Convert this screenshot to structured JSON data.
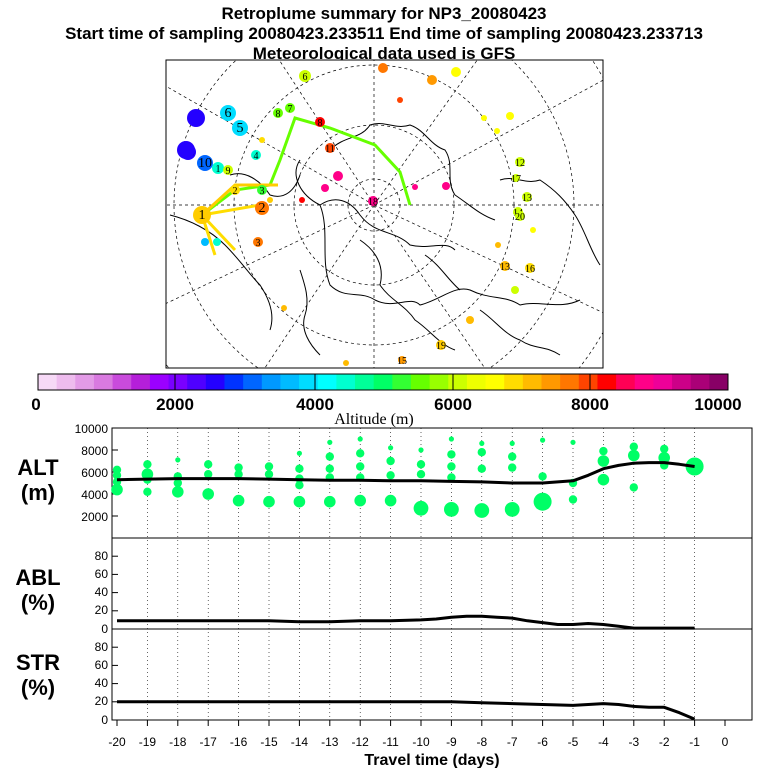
{
  "header": {
    "title": "Retroplume summary for NP3_20080423",
    "sampling": "Start time of sampling 20080423.233511     End time of sampling 20080423.233713",
    "met": "Meteorological data used is GFS"
  },
  "colorbar": {
    "ticks": [
      "0",
      "2000",
      "4000",
      "6000",
      "8000",
      "10000"
    ],
    "label": "Altitude (m)",
    "colors": [
      "#f6d9f6",
      "#eebcee",
      "#e39be7",
      "#d97ae0",
      "#c94bdc",
      "#b51fd9",
      "#9b00ff",
      "#7a00ff",
      "#4f00ff",
      "#2400ff",
      "#0033ff",
      "#0066ff",
      "#0099ff",
      "#00bbff",
      "#00ddff",
      "#00ffff",
      "#00ffd0",
      "#00ff99",
      "#00ff66",
      "#33ff33",
      "#66ff00",
      "#99ff00",
      "#ccff00",
      "#eeff00",
      "#ffff00",
      "#ffdd00",
      "#ffbb00",
      "#ff9900",
      "#ff7700",
      "#ff4400",
      "#ff0000",
      "#ff0055",
      "#ff0088",
      "#ee0099",
      "#cc0088",
      "#aa0077",
      "#880066"
    ]
  },
  "map": {
    "labels": [
      "1",
      "1",
      "2",
      "2",
      "3",
      "3",
      "4",
      "5",
      "6",
      "6",
      "7",
      "8",
      "8",
      "9",
      "10",
      "10",
      "11",
      "12",
      "13",
      "13",
      "14",
      "15",
      "16",
      "17",
      "18",
      "19",
      "20"
    ]
  },
  "chart_data": [
    {
      "type": "line",
      "panel": "ALT",
      "ylabel": "ALT (m)",
      "ylabel_lines": [
        "ALT",
        "(m)"
      ],
      "ylim": [
        0,
        10000
      ],
      "yticks": [
        "10000",
        "8000",
        "6000",
        "4000",
        "2000"
      ],
      "xlim": [
        -20,
        0
      ],
      "series": [
        {
          "name": "mean altitude",
          "x": [
            -20,
            -19,
            -18,
            -17,
            -16,
            -15,
            -14,
            -13,
            -12,
            -11,
            -10,
            -9,
            -8,
            -7,
            -6,
            -5,
            -4.5,
            -4,
            -3.5,
            -3,
            -2.5,
            -2,
            -1.5,
            -1
          ],
          "y": [
            5300,
            5350,
            5400,
            5400,
            5400,
            5350,
            5300,
            5250,
            5250,
            5200,
            5200,
            5150,
            5100,
            5000,
            5000,
            5200,
            5700,
            6300,
            6600,
            6800,
            6850,
            6850,
            6700,
            6500
          ]
        }
      ],
      "scatter": {
        "name": "altitude clusters",
        "x": [
          -20,
          -20,
          -20,
          -20,
          -19,
          -19,
          -19,
          -19,
          -18,
          -18,
          -18,
          -18,
          -17,
          -17,
          -17,
          -16,
          -16,
          -16,
          -15,
          -15,
          -15,
          -14,
          -14,
          -14,
          -14,
          -14,
          -13,
          -13,
          -13,
          -13,
          -13,
          -12,
          -12,
          -12,
          -12,
          -12,
          -11,
          -11,
          -11,
          -11,
          -10,
          -10,
          -10,
          -10,
          -9,
          -9,
          -9,
          -9,
          -9,
          -8,
          -8,
          -8,
          -8,
          -7,
          -7,
          -7,
          -7,
          -6,
          -6,
          -6,
          -5,
          -5,
          -5,
          -4,
          -4,
          -4,
          -3,
          -3,
          -3,
          -2,
          -2,
          -2,
          -1
        ],
        "y": [
          6200,
          5700,
          5100,
          4400,
          6700,
          5800,
          5300,
          4200,
          7100,
          5600,
          5000,
          4200,
          6700,
          5800,
          4000,
          6400,
          5800,
          3400,
          6500,
          5800,
          3300,
          7700,
          6300,
          5400,
          4800,
          3300,
          8700,
          7400,
          6300,
          5500,
          3300,
          9000,
          7700,
          6500,
          5500,
          3400,
          8200,
          7000,
          5700,
          3400,
          8000,
          6700,
          5800,
          2700,
          9000,
          7600,
          6500,
          5500,
          2600,
          8600,
          7800,
          6300,
          2500,
          8600,
          7400,
          6400,
          2600,
          8900,
          5600,
          3300,
          8700,
          5000,
          3500,
          7900,
          7000,
          5300,
          8300,
          7500,
          4600,
          8100,
          7300,
          6600,
          6500
        ],
        "size": [
          2,
          2,
          2,
          3,
          2,
          3,
          2,
          2,
          1,
          2,
          2,
          3,
          2,
          2,
          3,
          2,
          2,
          3,
          2,
          2,
          3,
          1,
          2,
          2,
          2,
          3,
          1,
          2,
          2,
          2,
          3,
          1,
          2,
          2,
          2,
          3,
          1,
          2,
          2,
          3,
          1,
          2,
          2,
          4,
          1,
          2,
          2,
          2,
          4,
          1,
          2,
          2,
          4,
          1,
          2,
          2,
          4,
          1,
          2,
          5,
          1,
          2,
          2,
          2,
          3,
          3,
          2,
          3,
          2,
          2,
          3,
          2,
          5
        ]
      }
    },
    {
      "type": "line",
      "panel": "ABL",
      "ylabel": "ABL (%)",
      "ylabel_lines": [
        "ABL",
        "(%)"
      ],
      "ylim": [
        0,
        100
      ],
      "yticks": [
        "80",
        "60",
        "40",
        "20",
        "0"
      ],
      "xlim": [
        -20,
        0
      ],
      "series": [
        {
          "name": "fraction in boundary layer",
          "x": [
            -20,
            -19,
            -18,
            -17,
            -16,
            -15,
            -14,
            -13,
            -12,
            -11,
            -10,
            -9.5,
            -9,
            -8.5,
            -8,
            -7.5,
            -7,
            -6.5,
            -6,
            -5.5,
            -5,
            -4.5,
            -4,
            -3.5,
            -3,
            -2.5,
            -2,
            -1.5,
            -1
          ],
          "y": [
            9,
            9,
            9,
            9,
            9,
            9,
            8,
            8,
            9,
            9,
            10,
            11,
            13,
            14,
            14,
            13,
            12,
            9,
            7,
            5,
            5,
            6,
            5,
            3,
            1,
            1,
            1,
            1,
            1
          ]
        }
      ]
    },
    {
      "type": "line",
      "panel": "STR",
      "ylabel": "STR (%)",
      "ylabel_lines": [
        "STR",
        "(%)"
      ],
      "ylim": [
        0,
        100
      ],
      "yticks": [
        "80",
        "60",
        "40",
        "20",
        "0"
      ],
      "xlim": [
        -20,
        0
      ],
      "xlabel": "Travel time (days)",
      "xticks": [
        "-20",
        "-19",
        "-18",
        "-17",
        "-16",
        "-15",
        "-14",
        "-13",
        "-12",
        "-11",
        "-10",
        "-9",
        "-8",
        "-7",
        "-6",
        "-5",
        "-4",
        "-3",
        "-2",
        "-1",
        "0"
      ],
      "series": [
        {
          "name": "fraction in stratosphere",
          "x": [
            -20,
            -19,
            -18,
            -17,
            -16,
            -15,
            -14,
            -13,
            -12,
            -11,
            -10,
            -9,
            -8,
            -7,
            -6,
            -5,
            -4.5,
            -4,
            -3.5,
            -3,
            -2.5,
            -2,
            -1.5,
            -1
          ],
          "y": [
            20,
            20,
            20,
            20,
            20,
            20,
            20,
            20,
            20,
            20,
            20,
            20,
            19,
            18,
            17,
            16,
            17,
            18,
            17,
            15,
            14,
            14,
            8,
            1
          ]
        }
      ]
    }
  ]
}
